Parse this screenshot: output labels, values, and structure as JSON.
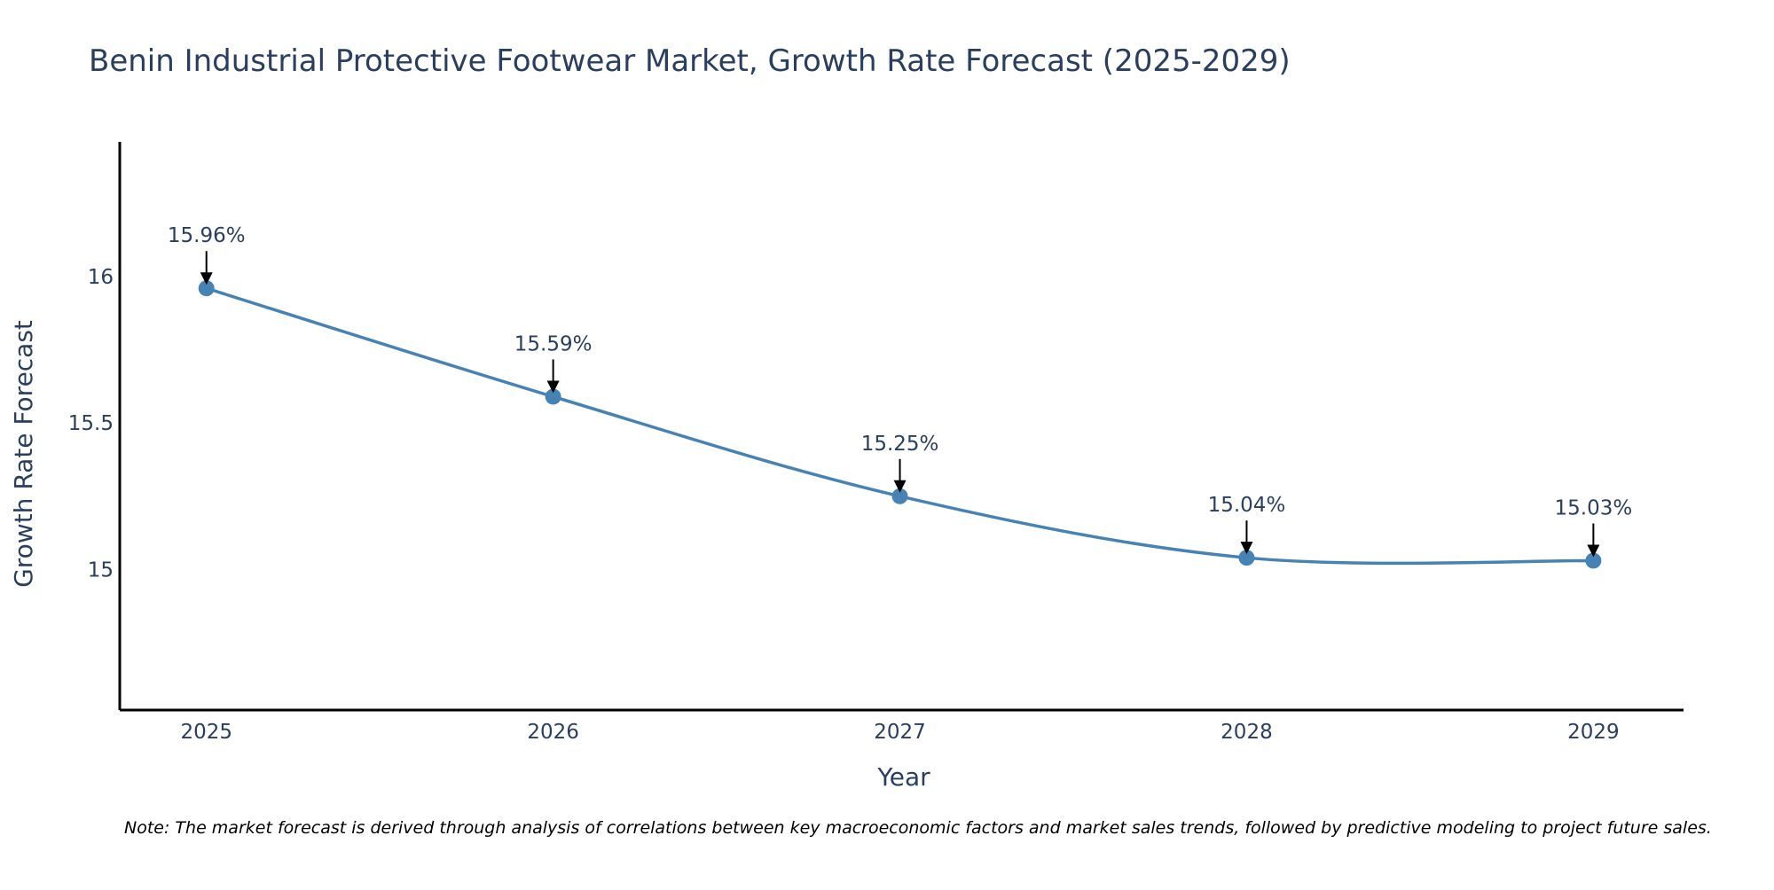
{
  "chart_data": {
    "type": "line",
    "title": "Benin Industrial Protective Footwear Market, Growth Rate Forecast (2025-2029)",
    "xlabel": "Year",
    "ylabel": "Growth Rate Forecast",
    "categories": [
      "2025",
      "2026",
      "2027",
      "2028",
      "2029"
    ],
    "values": [
      15.96,
      15.59,
      15.25,
      15.04,
      15.03
    ],
    "data_labels": [
      "15.96%",
      "15.59%",
      "15.25%",
      "15.04%",
      "15.03%"
    ],
    "y_ticks": [
      15,
      15.5,
      16
    ],
    "y_tick_labels": [
      "15",
      "15.5",
      "16"
    ],
    "ylim": [
      14.52,
      16.46
    ],
    "xlim": [
      2024.75,
      2029.26
    ],
    "grid": false,
    "line_color": "#4682b4",
    "note": "Note: The market forecast is derived through analysis of correlations between key macroeconomic factors and market sales trends, followed by predictive modeling to project future sales."
  }
}
